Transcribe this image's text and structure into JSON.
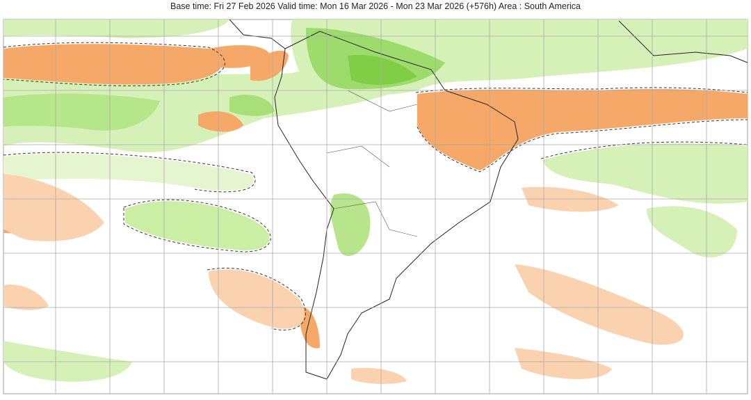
{
  "header": {
    "title": "Base time: Fri 27 Feb 2026 Valid time: Mon 16 Mar 2026 - Mon 23 Mar 2026 (+576h) Area : South America"
  }
}
